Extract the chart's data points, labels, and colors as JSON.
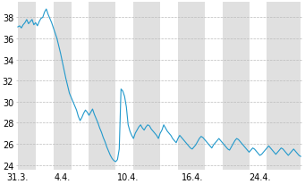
{
  "title": "",
  "line_color": "#2299cc",
  "line_width": 0.8,
  "background_color": "#ffffff",
  "plot_bg_color": "#ffffff",
  "alt_band_color": "#e0e0e0",
  "grid_color": "#bbbbbb",
  "ylim": [
    23.5,
    39.5
  ],
  "yticks": [
    24,
    26,
    28,
    30,
    32,
    34,
    36,
    38
  ],
  "xtick_labels": [
    "31.3.",
    "4.4.",
    "10.4.",
    "16.4.",
    "24.4."
  ],
  "tick_fontsize": 7,
  "prices": [
    37.1,
    37.2,
    37.0,
    37.3,
    37.5,
    37.8,
    37.4,
    37.6,
    37.8,
    37.3,
    37.5,
    37.2,
    37.6,
    37.9,
    38.0,
    38.5,
    38.8,
    38.3,
    37.9,
    37.5,
    37.0,
    36.5,
    36.0,
    35.3,
    34.6,
    33.8,
    33.0,
    32.2,
    31.5,
    30.8,
    30.4,
    30.0,
    29.6,
    29.2,
    28.6,
    28.2,
    28.5,
    28.9,
    29.2,
    29.0,
    28.7,
    29.0,
    29.3,
    28.8,
    28.4,
    28.0,
    27.5,
    27.1,
    26.6,
    26.2,
    25.7,
    25.3,
    24.9,
    24.6,
    24.4,
    24.3,
    24.5,
    25.5,
    31.2,
    31.0,
    30.5,
    29.5,
    27.8,
    27.2,
    26.8,
    26.5,
    27.0,
    27.3,
    27.6,
    27.8,
    27.5,
    27.3,
    27.6,
    27.8,
    27.7,
    27.4,
    27.2,
    27.0,
    26.8,
    26.5,
    27.0,
    27.3,
    27.8,
    27.5,
    27.2,
    27.0,
    26.8,
    26.5,
    26.3,
    26.1,
    26.5,
    26.8,
    26.6,
    26.4,
    26.2,
    26.0,
    25.8,
    25.6,
    25.5,
    25.7,
    25.9,
    26.2,
    26.5,
    26.7,
    26.6,
    26.4,
    26.2,
    26.0,
    25.8,
    25.6,
    25.9,
    26.1,
    26.3,
    26.5,
    26.3,
    26.1,
    25.9,
    25.7,
    25.5,
    25.4,
    25.7,
    26.0,
    26.3,
    26.5,
    26.4,
    26.2,
    26.0,
    25.8,
    25.6,
    25.4,
    25.2,
    25.4,
    25.6,
    25.5,
    25.3,
    25.1,
    24.9,
    25.0,
    25.2,
    25.4,
    25.6,
    25.8,
    25.6,
    25.4,
    25.2,
    25.0,
    25.2,
    25.4,
    25.6,
    25.5,
    25.3,
    25.1,
    24.9,
    25.1,
    25.3,
    25.5,
    25.3,
    25.1,
    24.9,
    24.8
  ],
  "band_ranges": [
    [
      0,
      10
    ],
    [
      20,
      30
    ],
    [
      40,
      55
    ],
    [
      65,
      80
    ],
    [
      90,
      105
    ],
    [
      115,
      130
    ],
    [
      140,
      159
    ]
  ]
}
